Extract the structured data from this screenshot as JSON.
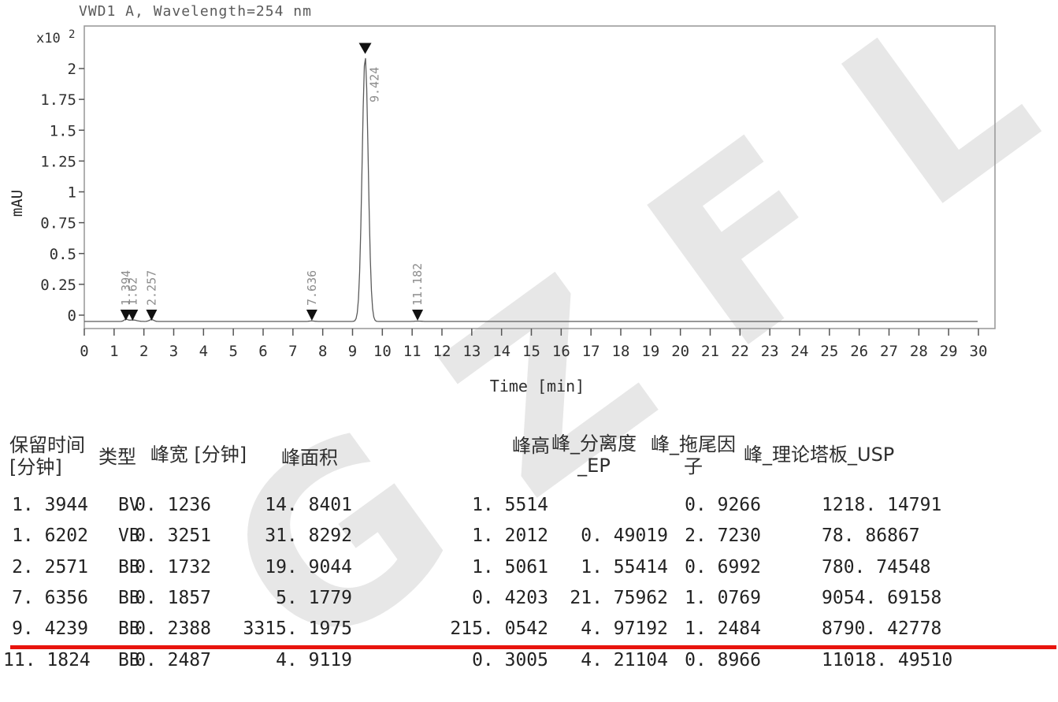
{
  "watermark_text": "GZFLM",
  "chart_data": {
    "type": "line",
    "title": "VWD1 A, Wavelength=254 nm",
    "ylabel": "mAU",
    "y_scale_prefix": "x10",
    "y_scale_exponent": "2",
    "xlabel": "Time [min]",
    "xlim": [
      0,
      30
    ],
    "ylim_x100_mAU": [
      0,
      2.35
    ],
    "grid": false,
    "x_ticks": [
      "0",
      "1",
      "2",
      "3",
      "4",
      "5",
      "6",
      "7",
      "8",
      "9",
      "10",
      "11",
      "12",
      "13",
      "14",
      "15",
      "16",
      "17",
      "18",
      "19",
      "20",
      "21",
      "22",
      "23",
      "24",
      "25",
      "26",
      "27",
      "28",
      "29",
      "30"
    ],
    "y_ticks": [
      "0",
      "0.25",
      "0.5",
      "0.75",
      "1",
      "1.25",
      "1.5",
      "1.75",
      "2"
    ],
    "peaks": [
      {
        "retention_min": 1.3944,
        "label": "1.394",
        "height_mAU": 1.5514,
        "width_min": 0.1236,
        "marker": "baseline"
      },
      {
        "retention_min": 1.6202,
        "label": "1.62",
        "height_mAU": 1.2012,
        "width_min": 0.3251,
        "marker": "baseline"
      },
      {
        "retention_min": 2.2571,
        "label": "2.257",
        "height_mAU": 1.5061,
        "width_min": 0.1732,
        "marker": "baseline"
      },
      {
        "retention_min": 7.6356,
        "label": "7.636",
        "height_mAU": 0.4203,
        "width_min": 0.1857,
        "marker": "baseline"
      },
      {
        "retention_min": 9.4239,
        "label": "9.424",
        "height_mAU": 215.0542,
        "width_min": 0.2388,
        "marker": "apex"
      },
      {
        "retention_min": 11.1824,
        "label": "11.182",
        "height_mAU": 0.3005,
        "width_min": 0.2487,
        "marker": "baseline"
      }
    ]
  },
  "table": {
    "headers": [
      {
        "line1": "保留时间",
        "line2": "[分钟]"
      },
      {
        "line1": "类型",
        "line2": ""
      },
      {
        "line1": "峰宽 [分钟]",
        "line2": ""
      },
      {
        "line1": "峰面积",
        "line2": ""
      },
      {
        "line1": "峰高",
        "line2": ""
      },
      {
        "line1": "峰_分离度",
        "line2": "_EP"
      },
      {
        "line1": "峰_拖尾因子",
        "line2": ""
      },
      {
        "line1": "峰_理论塔板_USP",
        "line2": ""
      }
    ],
    "rows": [
      [
        "1. 3944",
        "BV",
        "0. 1236",
        "14. 8401",
        "1. 5514",
        "",
        "0. 9266",
        "1218. 14791"
      ],
      [
        "1. 6202",
        "VB",
        "0. 3251",
        "31. 8292",
        "1. 2012",
        "0. 49019",
        "2. 7230",
        "78. 86867"
      ],
      [
        "2. 2571",
        "BB",
        "0. 1732",
        "19. 9044",
        "1. 5061",
        "1. 55414",
        "0. 6992",
        "780. 74548"
      ],
      [
        "7. 6356",
        "BB",
        "0. 1857",
        "5. 1779",
        "0. 4203",
        "21. 75962",
        "1. 0769",
        "9054. 69158"
      ],
      [
        "9. 4239",
        "BB",
        "0. 2388",
        "3315. 1975",
        "215. 0542",
        "4. 97192",
        "1. 2484",
        "8790. 42778"
      ],
      [
        "11. 1824",
        "BB",
        "0. 2487",
        "4. 9119",
        "0. 3005",
        "4. 21104",
        "0. 8966",
        "11018. 49510"
      ]
    ],
    "underline_color": "#e8140d",
    "underline_after_row_index": 4
  }
}
